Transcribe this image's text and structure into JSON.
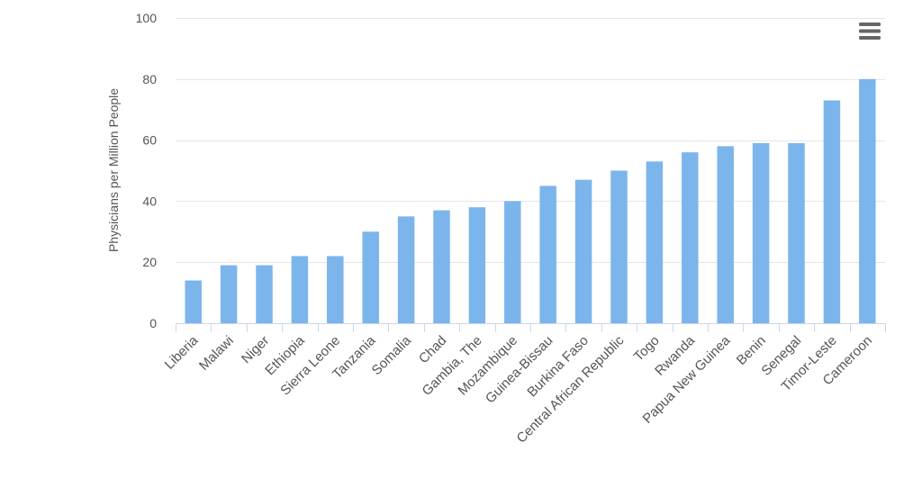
{
  "chart_data": {
    "type": "bar",
    "title": "",
    "xlabel": "",
    "ylabel": "Physicians per Million People",
    "ylim": [
      0,
      100
    ],
    "yticks": [
      0,
      20,
      40,
      60,
      80,
      100
    ],
    "grid": true,
    "legend": "none",
    "bar_color": "#7cb5ec",
    "categories": [
      "Liberia",
      "Malawi",
      "Niger",
      "Ethiopia",
      "Sierra Leone",
      "Tanzania",
      "Somalia",
      "Chad",
      "Gambia, The",
      "Mozambique",
      "Guinea-Bissau",
      "Burkina Faso",
      "Central African Republic",
      "Togo",
      "Rwanda",
      "Papua New Guinea",
      "Benin",
      "Senegal",
      "Timor-Leste",
      "Cameroon"
    ],
    "values": [
      14,
      19,
      19,
      22,
      22,
      30,
      35,
      37,
      38,
      40,
      45,
      47,
      50,
      53,
      56,
      58,
      59,
      59,
      73,
      80
    ]
  },
  "menu": {
    "icon": "hamburger-menu-icon"
  }
}
